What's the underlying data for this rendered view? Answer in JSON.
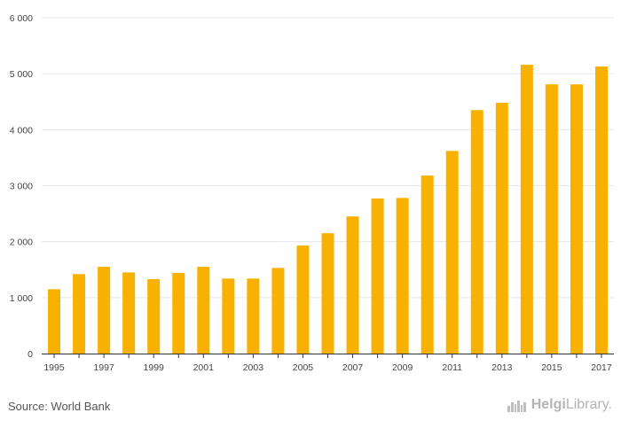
{
  "chart_data": {
    "type": "bar",
    "categories": [
      "1995",
      "1996",
      "1997",
      "1998",
      "1999",
      "2000",
      "2001",
      "2002",
      "2003",
      "2004",
      "2005",
      "2006",
      "2007",
      "2008",
      "2009",
      "2010",
      "2011",
      "2012",
      "2013",
      "2014",
      "2015",
      "2016",
      "2017"
    ],
    "x_tick_labels": [
      "1995",
      "1997",
      "1999",
      "2001",
      "2003",
      "2005",
      "2007",
      "2009",
      "2011",
      "2013",
      "2015",
      "2017"
    ],
    "values": [
      1150,
      1420,
      1550,
      1450,
      1330,
      1440,
      1550,
      1340,
      1340,
      1530,
      1930,
      2150,
      2450,
      2770,
      2780,
      3180,
      3620,
      4350,
      4480,
      5160,
      4810,
      4810,
      5130
    ],
    "y_ticks": [
      0,
      1000,
      2000,
      3000,
      4000,
      5000,
      6000
    ],
    "y_tick_labels": [
      "0",
      "1 000",
      "2 000",
      "3 000",
      "4 000",
      "5 000",
      "6 000"
    ],
    "ylim": [
      0,
      6000
    ],
    "grid": true,
    "bar_color": "#f9b100",
    "grid_color": "#e6e6e6",
    "title": "",
    "xlabel": "",
    "ylabel": ""
  },
  "footer": {
    "source": "Source: World Bank",
    "logo_brand": "Helgi",
    "logo_suffix": "Library."
  }
}
